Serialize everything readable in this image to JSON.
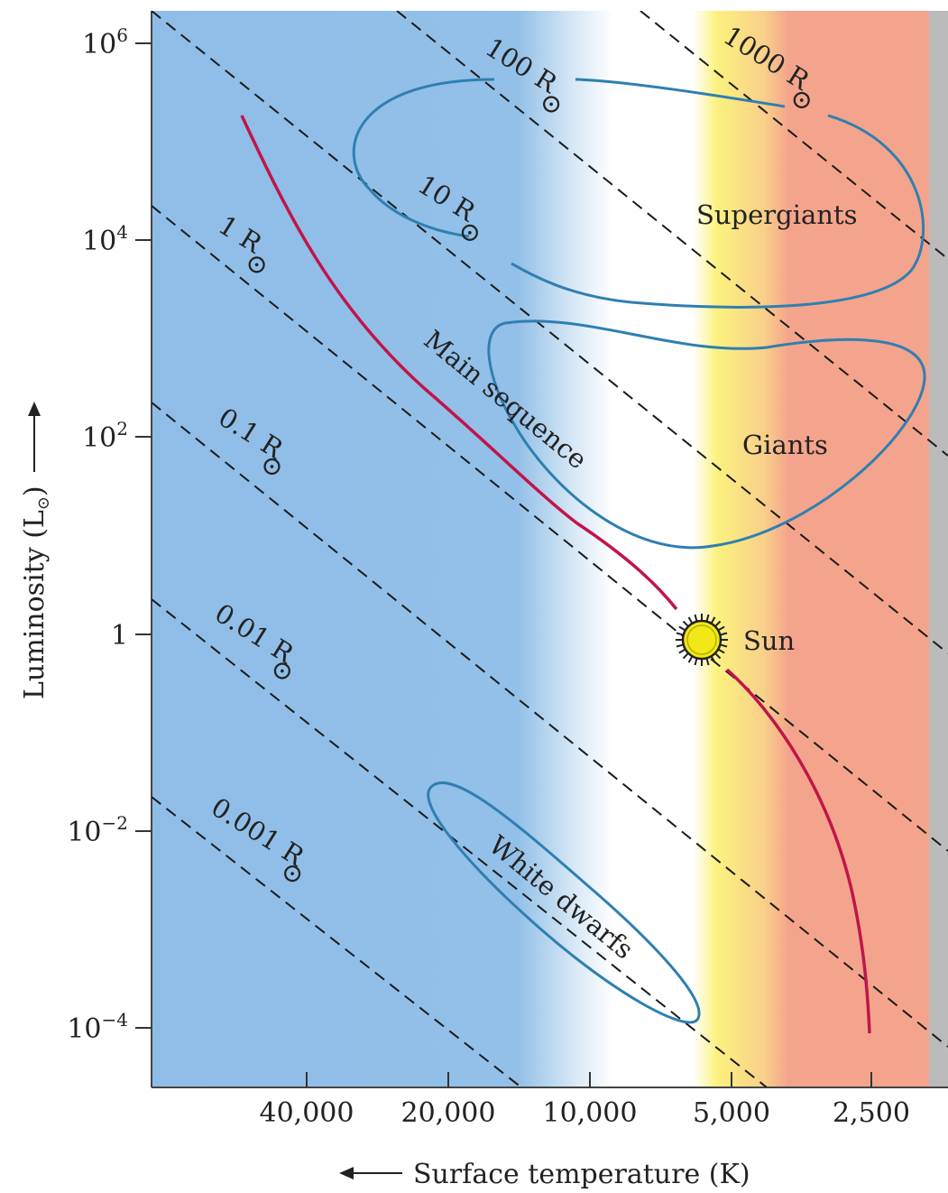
{
  "chart_data": {
    "type": "scatter",
    "title": "",
    "xlabel": "Surface temperature (K)",
    "ylabel": "Luminosity (L",
    "ylabel_symbol": "⊙",
    "ylabel_close": ")",
    "x_ticks": [
      "40,000",
      "20,000",
      "10,000",
      "5,000",
      "2,500"
    ],
    "y_ticks": [
      {
        "base": "10",
        "exp": "6"
      },
      {
        "base": "10",
        "exp": "4"
      },
      {
        "base": "10",
        "exp": "2"
      },
      {
        "base": "1",
        "exp": ""
      },
      {
        "base": "10",
        "exp": "−2"
      },
      {
        "base": "10",
        "exp": "−4"
      }
    ],
    "x_scale": "log, reversed",
    "y_scale": "log",
    "xlim_K": [
      75000,
      2000
    ],
    "ylim_Lsun": [
      2.5e-06,
      2000000
    ],
    "isoradius_lines": [
      {
        "num": "1000 R",
        "sym": "⊙",
        "radius_Rsun": 1000
      },
      {
        "num": "100 R",
        "sym": "⊙",
        "radius_Rsun": 100
      },
      {
        "num": "10 R",
        "sym": "⊙",
        "radius_Rsun": 10
      },
      {
        "num": "1 R",
        "sym": "⊙",
        "radius_Rsun": 1
      },
      {
        "num": "0.1 R",
        "sym": "⊙",
        "radius_Rsun": 0.1
      },
      {
        "num": "0.01 R",
        "sym": "⊙",
        "radius_Rsun": 0.01
      },
      {
        "num": "0.001 R",
        "sym": "⊙",
        "radius_Rsun": 0.001
      }
    ],
    "regions": [
      {
        "label": "Supergiants"
      },
      {
        "label": "Giants"
      },
      {
        "label": "Main sequence"
      },
      {
        "label": "White dwarfs"
      }
    ],
    "sun": {
      "label": "Sun",
      "T_K": 5800,
      "L_Lsun": 1
    },
    "colors": {
      "blue_band": "#8fbde8",
      "white_band": "#ffffff",
      "yellow_band": "#fbf27e",
      "orange_band": "#f9cf8a",
      "red_band": "#f4a48c",
      "gray_band": "#bbbbbb",
      "region_outline": "#2f7fb1",
      "main_sequence": "#c0154a",
      "sun_fill": "#f3e817"
    }
  }
}
